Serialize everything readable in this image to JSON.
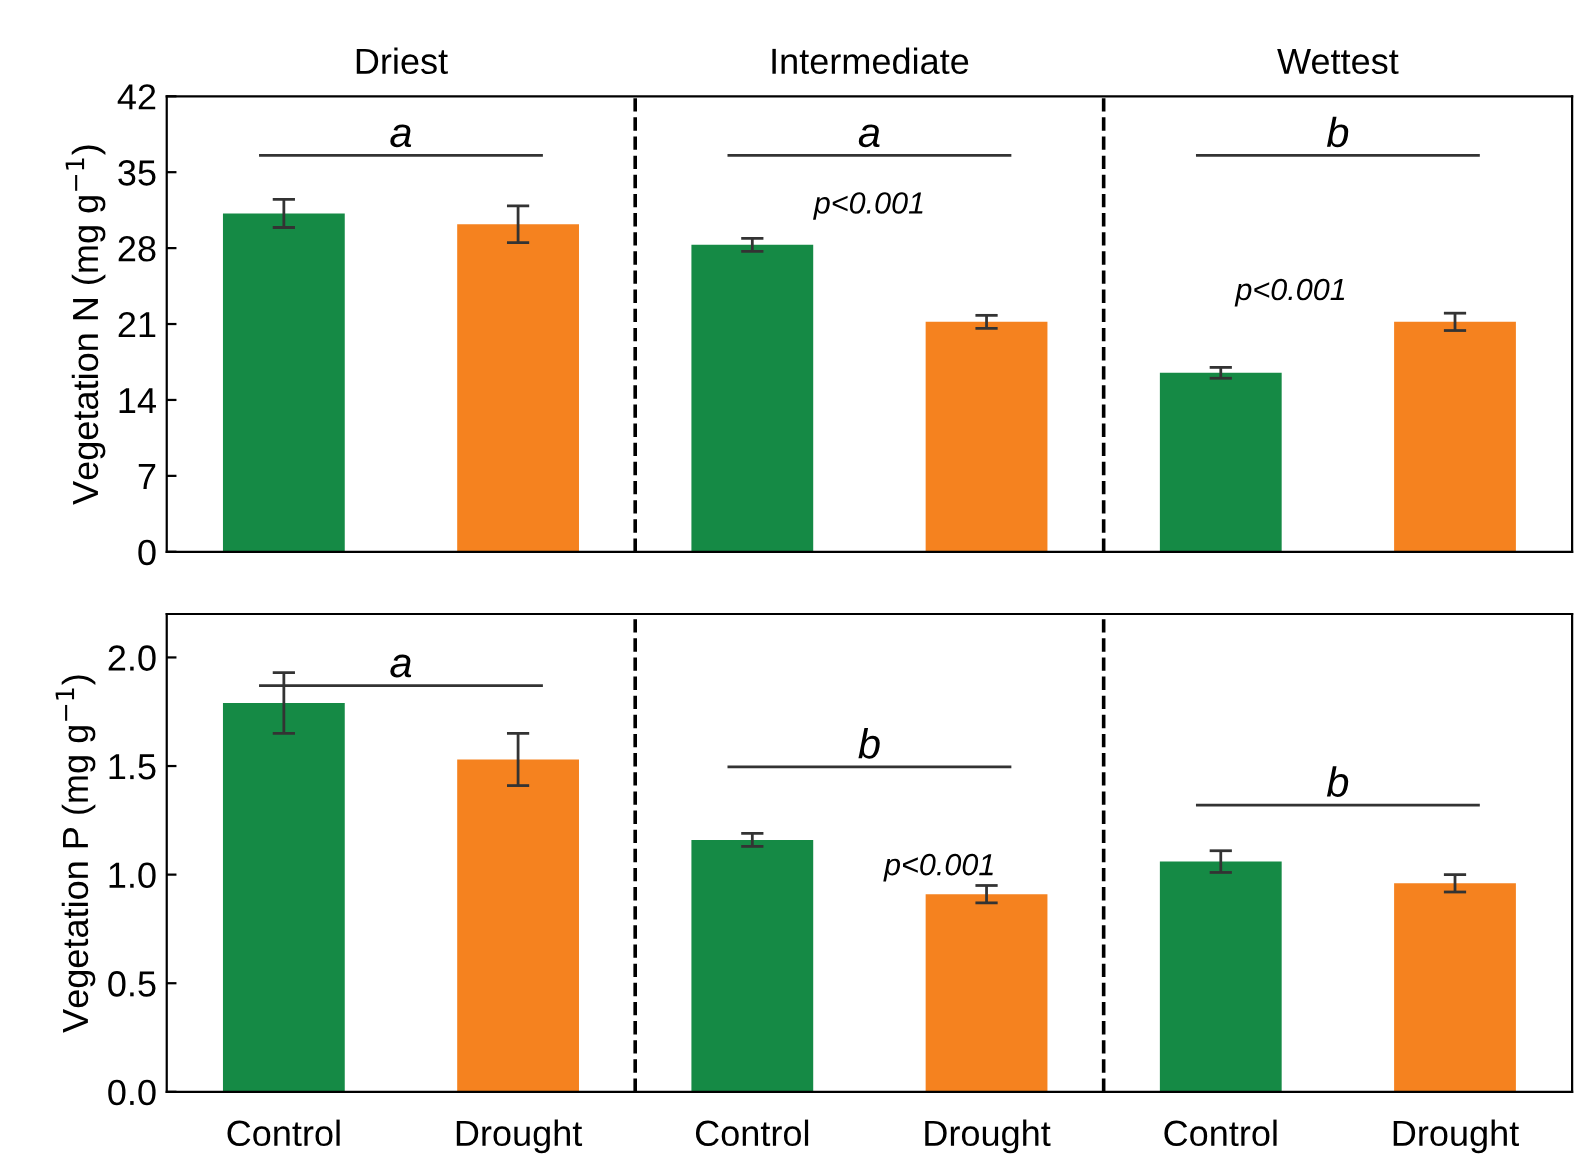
{
  "chart_data": [
    {
      "type": "bar",
      "ylabel": "Vegetation N (mg g$^{−1}$)",
      "categories": [
        null,
        null,
        null,
        null,
        null,
        null
      ],
      "values": [
        31.2,
        30.2,
        28.3,
        21.2,
        16.5,
        21.2
      ],
      "errors": [
        1.3,
        1.7,
        0.6,
        0.6,
        0.5,
        0.8
      ],
      "colors": [
        "#158a45",
        "#f5821f",
        "#158a45",
        "#f5821f",
        "#158a45",
        "#f5821f"
      ],
      "ylim": [
        0,
        42
      ],
      "yticks": [
        0,
        7,
        14,
        21,
        28,
        35,
        42
      ],
      "annotations": [
        "Driest",
        "Intermediate",
        "Wettest",
        "a",
        "a",
        "b",
        "p<0.001",
        "p<0.001"
      ],
      "tick_labels": "y",
      "grid": false,
      "legend": false
    },
    {
      "type": "bar",
      "ylabel": "Vegetation P (mg g$^{−1}$)",
      "categories": [
        "Control",
        "Drought",
        "Control",
        "Drought",
        "Control",
        "Drought"
      ],
      "values": [
        1.79,
        1.53,
        1.16,
        0.91,
        1.06,
        0.96
      ],
      "errors": [
        0.14,
        0.12,
        0.03,
        0.04,
        0.05,
        0.04
      ],
      "colors": [
        "#158a45",
        "#f5821f",
        "#158a45",
        "#f5821f",
        "#158a45",
        "#f5821f"
      ],
      "ylim": [
        0,
        2.2
      ],
      "yticks": [
        {
          "value": 0,
          "label": "0.0"
        },
        {
          "value": 0.5,
          "label": "0.5"
        },
        {
          "value": 1.0,
          "label": "1.0"
        },
        {
          "value": 1.5,
          "label": "1.5"
        },
        {
          "value": 2.0,
          "label": "2.0"
        }
      ],
      "annotations": [
        "a",
        "b",
        "b",
        "p<0.001"
      ],
      "grid": false,
      "legend": false
    }
  ]
}
